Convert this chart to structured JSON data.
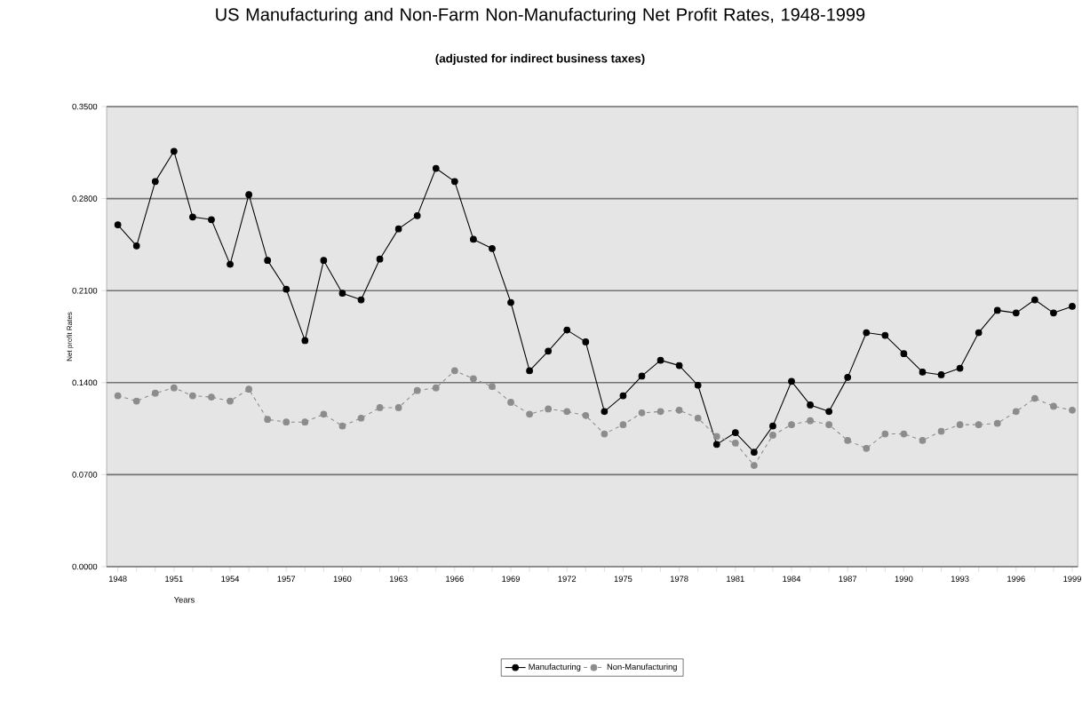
{
  "chart_data": {
    "type": "line",
    "title": "US Manufacturing and Non-Farm Non-Manufacturing Net Profit Rates, 1948-1999",
    "subtitle": "(adjusted for indirect business taxes)",
    "xlabel": "Years",
    "ylabel": "Net profit Rates",
    "x": [
      1948,
      1949,
      1950,
      1951,
      1952,
      1953,
      1954,
      1955,
      1956,
      1957,
      1958,
      1959,
      1960,
      1961,
      1962,
      1963,
      1964,
      1965,
      1966,
      1967,
      1968,
      1969,
      1970,
      1971,
      1972,
      1973,
      1974,
      1975,
      1976,
      1977,
      1978,
      1979,
      1980,
      1981,
      1982,
      1983,
      1984,
      1985,
      1986,
      1987,
      1988,
      1989,
      1990,
      1991,
      1992,
      1993,
      1994,
      1995,
      1996,
      1997,
      1998,
      1999
    ],
    "series": [
      {
        "name": "Manufacturing",
        "color": "#000000",
        "line_style": "solid",
        "marker": "circle",
        "values": [
          0.26,
          0.244,
          0.293,
          0.316,
          0.266,
          0.264,
          0.23,
          0.283,
          0.233,
          0.211,
          0.172,
          0.233,
          0.208,
          0.203,
          0.234,
          0.257,
          0.267,
          0.303,
          0.293,
          0.249,
          0.242,
          0.201,
          0.149,
          0.164,
          0.18,
          0.171,
          0.118,
          0.13,
          0.145,
          0.157,
          0.153,
          0.138,
          0.093,
          0.102,
          0.087,
          0.107,
          0.141,
          0.123,
          0.118,
          0.144,
          0.178,
          0.176,
          0.162,
          0.148,
          0.146,
          0.151,
          0.178,
          0.195,
          0.193,
          0.203,
          0.193,
          0.198
        ]
      },
      {
        "name": "Non-Manufacturing",
        "color": "#8c8c8c",
        "line_style": "dashed",
        "marker": "circle",
        "values": [
          0.13,
          0.126,
          0.132,
          0.136,
          0.13,
          0.129,
          0.126,
          0.135,
          0.112,
          0.11,
          0.11,
          0.116,
          0.107,
          0.113,
          0.121,
          0.121,
          0.134,
          0.136,
          0.149,
          0.143,
          0.137,
          0.125,
          0.116,
          0.12,
          0.118,
          0.115,
          0.101,
          0.108,
          0.117,
          0.118,
          0.119,
          0.113,
          0.099,
          0.094,
          0.077,
          0.1,
          0.108,
          0.111,
          0.108,
          0.096,
          0.09,
          0.101,
          0.101,
          0.096,
          0.103,
          0.108,
          0.108,
          0.109,
          0.118,
          0.128,
          0.122,
          0.119
        ]
      }
    ],
    "xlim": [
      1947.4,
      1999.3
    ],
    "xticks": [
      1948,
      {
        "value": 1949,
        "label": null
      },
      {
        "value": 1950,
        "label": null
      },
      1951,
      {
        "value": 1952,
        "label": null
      },
      {
        "value": 1953,
        "label": null
      },
      1954,
      {
        "value": 1955,
        "label": null
      },
      {
        "value": 1956,
        "label": null
      },
      1957,
      {
        "value": 1958,
        "label": null
      },
      {
        "value": 1959,
        "label": null
      },
      1960,
      {
        "value": 1961,
        "label": null
      },
      {
        "value": 1962,
        "label": null
      },
      1963,
      {
        "value": 1964,
        "label": null
      },
      {
        "value": 1965,
        "label": null
      },
      1966,
      {
        "value": 1967,
        "label": null
      },
      {
        "value": 1968,
        "label": null
      },
      1969,
      {
        "value": 1970,
        "label": null
      },
      {
        "value": 1971,
        "label": null
      },
      1972,
      {
        "value": 1973,
        "label": null
      },
      {
        "value": 1974,
        "label": null
      },
      1975,
      {
        "value": 1976,
        "label": null
      },
      {
        "value": 1977,
        "label": null
      },
      1978,
      {
        "value": 1979,
        "label": null
      },
      {
        "value": 1980,
        "label": null
      },
      1981,
      {
        "value": 1982,
        "label": null
      },
      {
        "value": 1983,
        "label": null
      },
      1984,
      {
        "value": 1985,
        "label": null
      },
      {
        "value": 1986,
        "label": null
      },
      1987,
      {
        "value": 1988,
        "label": null
      },
      {
        "value": 1989,
        "label": null
      },
      1990,
      {
        "value": 1991,
        "label": null
      },
      {
        "value": 1992,
        "label": null
      },
      1993,
      {
        "value": 1994,
        "label": null
      },
      {
        "value": 1995,
        "label": null
      },
      1996,
      {
        "value": 1997,
        "label": null
      },
      {
        "value": 1998,
        "label": null
      },
      1999
    ],
    "ylim": [
      0,
      0.35
    ],
    "yticks": [
      {
        "value": 0,
        "label": "0.0000"
      },
      {
        "value": 0.07,
        "label": "0.0700"
      },
      {
        "value": 0.14,
        "label": "0.1400"
      },
      {
        "value": 0.21,
        "label": "0.2100"
      },
      {
        "value": 0.28,
        "label": "0.2800"
      },
      {
        "value": 0.35,
        "label": "0.3500"
      }
    ],
    "grid": "y",
    "legend": "bottom"
  }
}
